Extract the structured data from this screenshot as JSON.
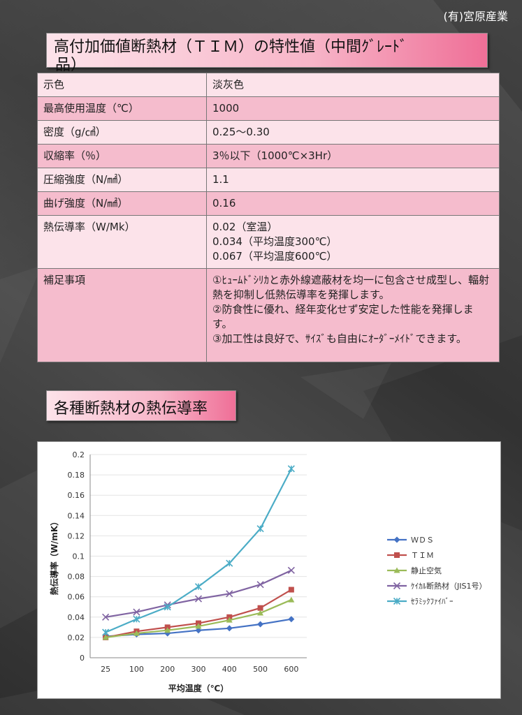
{
  "company": "(有)宮原産業",
  "title_line1": "高付加価値断熱材（ＴＩＭ）の特性値（中間ｸﾞﾚｰﾄﾞ",
  "title_line2": "品）",
  "spec_rows": [
    {
      "key": "示色",
      "value": [
        "淡灰色"
      ]
    },
    {
      "key": "最高使用温度（℃）",
      "value": [
        "1000"
      ]
    },
    {
      "key": "密度（g/㎤）",
      "value": [
        "0.25～0.30"
      ]
    },
    {
      "key": "収縮率（％）",
      "value": [
        "3％以下（1000℃×3Hr）"
      ]
    },
    {
      "key": "圧縮強度（N/㎟）",
      "value": [
        "1.1"
      ]
    },
    {
      "key": "曲げ強度（N/㎟）",
      "value": [
        "0.16"
      ]
    },
    {
      "key": "熱伝導率（W/Mk）",
      "value": [
        "0.02（室温）",
        "0.034（平均温度300℃）",
        "0.067（平均温度600℃）"
      ]
    },
    {
      "key": "補足事項",
      "value": [
        "①ﾋｭｰﾑﾄﾞｼﾘｶと赤外線遮蔽材を均一に包含させ成型し、輻射熱を抑制し低熱伝導率を発揮します。",
        "②防食性に優れ、経年変化せず安定した性能を発揮します。",
        "③加工性は良好で、ｻｲｽﾞも自由にｵｰﾀﾞｰﾒｲﾄﾞできます。"
      ]
    }
  ],
  "section2_title": "各種断熱材の熱伝導率",
  "chart_data": {
    "type": "line",
    "categories": [
      "25",
      "100",
      "200",
      "300",
      "400",
      "500",
      "600"
    ],
    "xlabel": "平均温度（℃）",
    "ylabel": "熱伝導率（W/mK）",
    "ylim": [
      0,
      0.2
    ],
    "yticks": [
      "0",
      "0.02",
      "0.04",
      "0.06",
      "0.08",
      "0.1",
      "0.12",
      "0.14",
      "0.16",
      "0.18",
      "0.2"
    ],
    "legend_position": "right",
    "series": [
      {
        "name": "ＷＤＳ",
        "color": "#4472c4",
        "marker": "diamond",
        "values": [
          0.021,
          0.023,
          0.024,
          0.027,
          0.029,
          0.033,
          0.038
        ]
      },
      {
        "name": "ＴＩＭ",
        "color": "#c0504d",
        "marker": "square",
        "values": [
          0.02,
          0.026,
          0.03,
          0.034,
          0.04,
          0.049,
          0.067
        ]
      },
      {
        "name": "静止空気",
        "color": "#9bbb59",
        "marker": "triangle",
        "values": [
          0.02,
          0.024,
          0.027,
          0.031,
          0.037,
          0.044,
          0.057
        ]
      },
      {
        "name": "ｹｲｶﾙ断熱材（JIS1号）",
        "color": "#8064a2",
        "marker": "x",
        "values": [
          0.04,
          0.045,
          0.052,
          0.058,
          0.063,
          0.072,
          0.086
        ]
      },
      {
        "name": "ｾﾗﾐｯｸﾌｧｲﾊﾞｰ",
        "color": "#4bacc6",
        "marker": "star",
        "values": [
          0.025,
          0.038,
          0.05,
          0.07,
          0.093,
          0.127,
          0.186
        ]
      }
    ]
  }
}
